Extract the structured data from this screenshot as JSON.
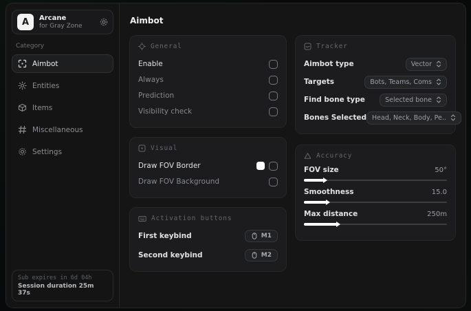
{
  "app": {
    "name": "Arcane",
    "subtitle": "for Gray Zone",
    "logo_letter": "A"
  },
  "sidebar": {
    "category_label": "Category",
    "items": [
      {
        "label": "Aimbot"
      },
      {
        "label": "Entities"
      },
      {
        "label": "Items"
      },
      {
        "label": "Miscellaneous"
      },
      {
        "label": "Settings"
      }
    ],
    "footer": {
      "expiry": "Sub expires in 6d 04h",
      "session": "Session duration 25m 37s"
    }
  },
  "header": {
    "title": "Aimbot"
  },
  "cards": {
    "general": {
      "title": "General",
      "rows": [
        {
          "label": "Enable"
        },
        {
          "label": "Always"
        },
        {
          "label": "Prediction"
        },
        {
          "label": "Visibility check"
        }
      ]
    },
    "visual": {
      "title": "Visual",
      "rows": [
        {
          "label": "Draw FOV Border",
          "swatch_color": "#ffffff"
        },
        {
          "label": "Draw FOV Background"
        }
      ]
    },
    "activation": {
      "title": "Activation buttons",
      "rows": [
        {
          "label": "First keybind",
          "key": "M1"
        },
        {
          "label": "Second keybind",
          "key": "M2"
        }
      ]
    },
    "tracker": {
      "title": "Tracker",
      "rows": [
        {
          "label": "Aimbot type",
          "value": "Vector"
        },
        {
          "label": "Targets",
          "value": "Bots, Teams, Coms"
        },
        {
          "label": "Find bone type",
          "value": "Selected bone"
        },
        {
          "label": "Bones Selected",
          "value": "Head, Neck, Body, Pe.."
        }
      ]
    },
    "accuracy": {
      "title": "Accuracy",
      "sliders": [
        {
          "label": "FOV size",
          "value": "50°",
          "percent": 14
        },
        {
          "label": "Smoothness",
          "value": "15.0",
          "percent": 16
        },
        {
          "label": "Max distance",
          "value": "250m",
          "percent": 23
        }
      ]
    }
  },
  "colors": {
    "window_bg": "#151516",
    "card_bg": "#1c1c1e",
    "accent_swatch": "#ffffff",
    "label_bright": "#dfe1e3",
    "label_dim": "#85898d"
  }
}
